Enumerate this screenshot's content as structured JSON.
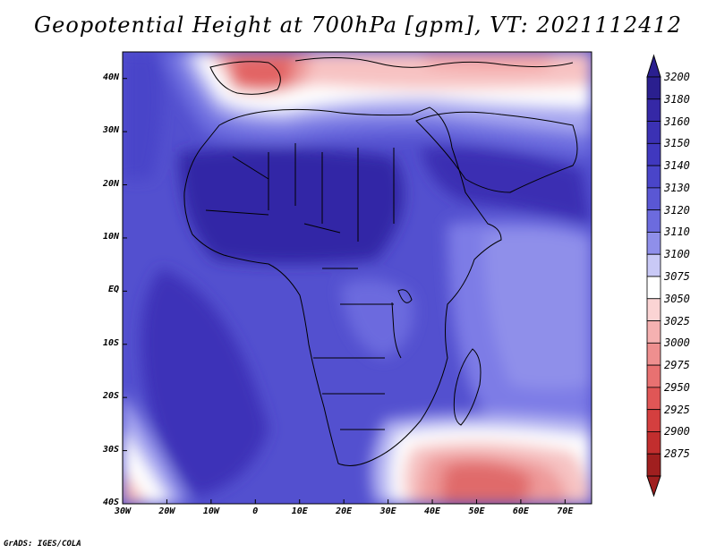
{
  "title": "Geopotential Height at 700hPa [gpm], VT: 2021112412",
  "credit": "GrADS: IGES/COLA",
  "map": {
    "lon_range": [
      -30,
      76
    ],
    "lat_range": [
      -40,
      45
    ],
    "lon_ticks": [
      {
        "lon": -30,
        "label": "30W"
      },
      {
        "lon": -20,
        "label": "20W"
      },
      {
        "lon": -10,
        "label": "10W"
      },
      {
        "lon": 0,
        "label": "0"
      },
      {
        "lon": 10,
        "label": "10E"
      },
      {
        "lon": 20,
        "label": "20E"
      },
      {
        "lon": 30,
        "label": "30E"
      },
      {
        "lon": 40,
        "label": "40E"
      },
      {
        "lon": 50,
        "label": "50E"
      },
      {
        "lon": 60,
        "label": "60E"
      },
      {
        "lon": 70,
        "label": "70E"
      }
    ],
    "lat_ticks": [
      {
        "lat": 40,
        "label": "40N"
      },
      {
        "lat": 30,
        "label": "30N"
      },
      {
        "lat": 20,
        "label": "20N"
      },
      {
        "lat": 10,
        "label": "10N"
      },
      {
        "lat": 0,
        "label": "EQ"
      },
      {
        "lat": -10,
        "label": "10S"
      },
      {
        "lat": -20,
        "label": "20S"
      },
      {
        "lat": -30,
        "label": "30S"
      },
      {
        "lat": -40,
        "label": "40S"
      }
    ]
  },
  "colorbar": {
    "levels": [
      {
        "label": "3200",
        "color": "#2a1f8f"
      },
      {
        "label": "3180",
        "color": "#3528a6"
      },
      {
        "label": "3160",
        "color": "#3b31b4"
      },
      {
        "label": "3150",
        "color": "#4038bf"
      },
      {
        "label": "3140",
        "color": "#4a45c9"
      },
      {
        "label": "3130",
        "color": "#5a57d4"
      },
      {
        "label": "3120",
        "color": "#6c6bde"
      },
      {
        "label": "3110",
        "color": "#8f8fea"
      },
      {
        "label": "3100",
        "color": "#c9c9f6"
      },
      {
        "label": "3075",
        "color": "#ffffff"
      },
      {
        "label": "3050",
        "color": "#fbd4d4"
      },
      {
        "label": "3025",
        "color": "#f5b1b1"
      },
      {
        "label": "3000",
        "color": "#ee8f8f"
      },
      {
        "label": "2975",
        "color": "#e87171"
      },
      {
        "label": "2950",
        "color": "#e05656"
      },
      {
        "label": "2925",
        "color": "#d43f3f"
      },
      {
        "label": "2900",
        "color": "#c22e2e"
      },
      {
        "label": "2875",
        "color": "#a01f1f"
      }
    ]
  }
}
